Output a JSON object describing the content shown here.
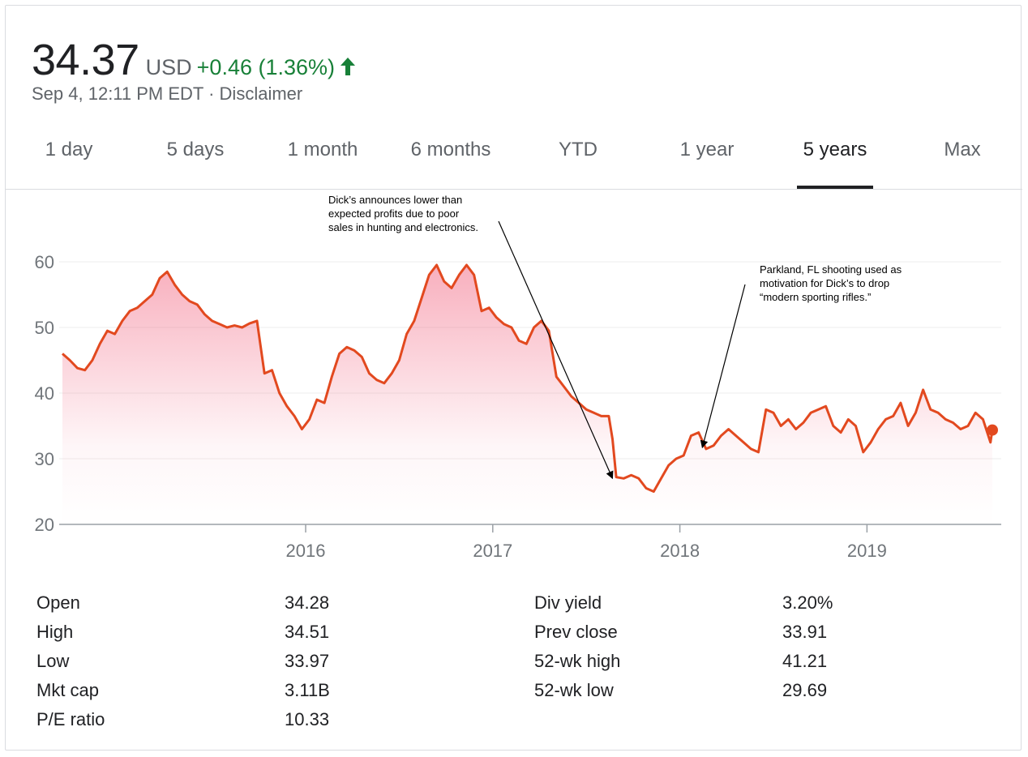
{
  "quote": {
    "price": "34.37",
    "currency": "USD",
    "change": "+0.46 (1.36%)",
    "timestamp": "Sep 4, 12:11 PM EDT",
    "separator": "·",
    "disclaimer": "Disclaimer",
    "change_color": "#188038"
  },
  "tabs": [
    {
      "label": "1 day",
      "active": false
    },
    {
      "label": "5 days",
      "active": false
    },
    {
      "label": "1 month",
      "active": false
    },
    {
      "label": "6 months",
      "active": false
    },
    {
      "label": "YTD",
      "active": false
    },
    {
      "label": "1 year",
      "active": false
    },
    {
      "label": "5 years",
      "active": true
    },
    {
      "label": "Max",
      "active": false
    }
  ],
  "chart_data": {
    "type": "line",
    "series": [
      {
        "color": "#e2491f",
        "x": [
          2014.7,
          2014.74,
          2014.78,
          2014.82,
          2014.86,
          2014.9,
          2014.94,
          2014.98,
          2015.02,
          2015.06,
          2015.1,
          2015.14,
          2015.18,
          2015.22,
          2015.26,
          2015.3,
          2015.34,
          2015.38,
          2015.42,
          2015.46,
          2015.5,
          2015.54,
          2015.58,
          2015.62,
          2015.66,
          2015.7,
          2015.74,
          2015.78,
          2015.82,
          2015.86,
          2015.9,
          2015.94,
          2015.98,
          2016.02,
          2016.06,
          2016.1,
          2016.14,
          2016.18,
          2016.22,
          2016.26,
          2016.3,
          2016.34,
          2016.38,
          2016.42,
          2016.46,
          2016.5,
          2016.54,
          2016.58,
          2016.62,
          2016.66,
          2016.7,
          2016.74,
          2016.78,
          2016.82,
          2016.86,
          2016.9,
          2016.94,
          2016.98,
          2017.02,
          2017.06,
          2017.1,
          2017.14,
          2017.18,
          2017.22,
          2017.26,
          2017.3,
          2017.34,
          2017.38,
          2017.42,
          2017.46,
          2017.5,
          2017.54,
          2017.58,
          2017.62,
          2017.64,
          2017.66,
          2017.7,
          2017.74,
          2017.78,
          2017.82,
          2017.86,
          2017.9,
          2017.94,
          2017.98,
          2018.02,
          2018.06,
          2018.1,
          2018.14,
          2018.18,
          2018.22,
          2018.26,
          2018.3,
          2018.34,
          2018.38,
          2018.42,
          2018.46,
          2018.5,
          2018.54,
          2018.58,
          2018.62,
          2018.66,
          2018.7,
          2018.74,
          2018.78,
          2018.82,
          2018.86,
          2018.9,
          2018.94,
          2018.98,
          2019.02,
          2019.06,
          2019.1,
          2019.14,
          2019.18,
          2019.22,
          2019.26,
          2019.3,
          2019.34,
          2019.38,
          2019.42,
          2019.46,
          2019.5,
          2019.54,
          2019.58,
          2019.62,
          2019.66,
          2019.67
        ],
        "y": [
          46.0,
          45.0,
          43.8,
          43.5,
          45.0,
          47.5,
          49.5,
          49.0,
          51.0,
          52.5,
          53.0,
          54.0,
          55.0,
          57.5,
          58.5,
          56.5,
          55.0,
          54.0,
          53.5,
          52.0,
          51.0,
          50.5,
          50.0,
          50.3,
          50.0,
          50.6,
          51.0,
          43.0,
          43.5,
          40.0,
          38.0,
          36.5,
          34.5,
          36.0,
          39.0,
          38.5,
          42.5,
          46.0,
          47.0,
          46.5,
          45.5,
          43.0,
          42.0,
          41.5,
          43.0,
          45.0,
          49.0,
          51.0,
          54.5,
          58.0,
          59.5,
          57.0,
          56.0,
          58.0,
          59.5,
          58.0,
          52.5,
          53.0,
          51.5,
          50.5,
          50.0,
          48.0,
          47.5,
          50.0,
          51.0,
          49.5,
          42.5,
          41.0,
          39.5,
          38.5,
          37.5,
          37.0,
          36.5,
          36.5,
          33.0,
          27.2,
          27.0,
          27.5,
          27.0,
          25.5,
          25.0,
          27.0,
          29.0,
          30.0,
          30.5,
          33.5,
          34.0,
          31.5,
          32.0,
          33.5,
          34.5,
          33.5,
          32.5,
          31.5,
          31.0,
          37.5,
          37.0,
          35.0,
          36.0,
          34.5,
          35.5,
          37.0,
          37.5,
          38.0,
          35.0,
          34.0,
          36.0,
          35.0,
          31.0,
          32.5,
          34.5,
          36.0,
          36.5,
          38.5,
          35.0,
          37.0,
          40.5,
          37.5,
          37.0,
          36.0,
          35.5,
          34.5,
          35.0,
          37.0,
          36.0,
          32.5,
          34.37
        ]
      }
    ],
    "y_ticks": [
      "60",
      "50",
      "40",
      "30",
      "20"
    ],
    "x_tick_labels": [
      "2016",
      "2017",
      "2018",
      "2019"
    ],
    "ylim": [
      20,
      60
    ],
    "grid": true,
    "current_point": {
      "x": 2019.67,
      "y": 34.37
    },
    "annotations": [
      {
        "lines": [
          "Dick’s announces lower than",
          "expected profits due to poor",
          "sales in hunting and electronics."
        ],
        "point_to": {
          "x": 2017.64,
          "y": 27.0
        }
      },
      {
        "lines": [
          "Parkland, FL shooting used as",
          "motivation for Dick’s to drop",
          "“modern sporting rifles.”"
        ],
        "point_to": {
          "x": 2018.12,
          "y": 31.7
        }
      }
    ]
  },
  "stats": {
    "left": [
      {
        "label": "Open",
        "value": "34.28"
      },
      {
        "label": "High",
        "value": "34.51"
      },
      {
        "label": "Low",
        "value": "33.97"
      },
      {
        "label": "Mkt cap",
        "value": "3.11B"
      },
      {
        "label": "P/E ratio",
        "value": "10.33"
      }
    ],
    "right": [
      {
        "label": "Div yield",
        "value": "3.20%"
      },
      {
        "label": "Prev close",
        "value": "33.91"
      },
      {
        "label": "52-wk high",
        "value": "41.21"
      },
      {
        "label": "52-wk low",
        "value": "29.69"
      }
    ]
  }
}
